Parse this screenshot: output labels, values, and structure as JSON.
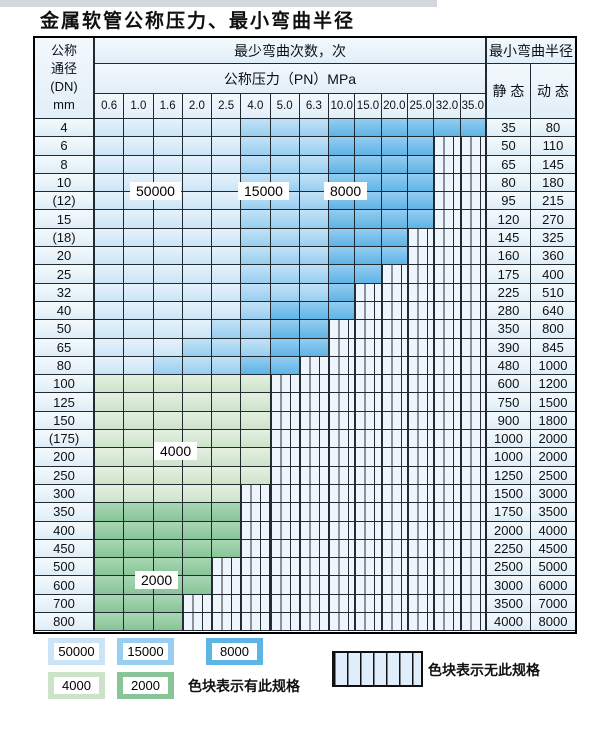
{
  "title": "金属软管公称压力、最小弯曲半径",
  "header": {
    "dn_line1": "公称",
    "dn_line2": "通径",
    "dn_line3": "(DN)",
    "dn_line4": "mm",
    "bend_cycles": "最少弯曲次数，次",
    "pressure": "公称压力（PN）MPa",
    "min_radius": "最小弯曲半径",
    "static": "静 态",
    "dynamic": "动 态",
    "pressure_cols": [
      "0.6",
      "1.0",
      "1.6",
      "2.0",
      "2.5",
      "4.0",
      "5.0",
      "6.3",
      "10.0",
      "15.0",
      "20.0",
      "25.0",
      "32.0",
      "35.0"
    ]
  },
  "region_labels": [
    "50000",
    "15000",
    "8000",
    "4000",
    "2000"
  ],
  "colors": {
    "cycles_50000_light_blue": "#cbe5f6",
    "cycles_15000_mid_blue": "#98cef0",
    "cycles_8000_dark_blue": "#5fb4e6",
    "cycles_4000_light_green": "#cde3c9",
    "cycles_2000_mid_green": "#88c497",
    "stripe_background": "#eef5fc",
    "header_background": "#e1eef8"
  },
  "rows": [
    {
      "dn": "4",
      "cells": "LLLLLMMMDDDDDD",
      "static": "35",
      "dynamic": "80"
    },
    {
      "dn": "6",
      "cells": "LLLLLMMMDDDDSS",
      "static": "50",
      "dynamic": "110"
    },
    {
      "dn": "8",
      "cells": "LLLLLMMMDDDDSS",
      "static": "65",
      "dynamic": "145"
    },
    {
      "dn": "10",
      "cells": "LLLLLMMMDDDDSS",
      "static": "80",
      "dynamic": "180"
    },
    {
      "dn": "(12)",
      "cells": "LLLLLMMMDDDDSS",
      "static": "95",
      "dynamic": "215"
    },
    {
      "dn": "15",
      "cells": "LLLLLMMMDDDDSS",
      "static": "120",
      "dynamic": "270"
    },
    {
      "dn": "(18)",
      "cells": "LLLLLMMMDDDSSS",
      "static": "145",
      "dynamic": "325"
    },
    {
      "dn": "20",
      "cells": "LLLLLMMMDDDSSS",
      "static": "160",
      "dynamic": "360"
    },
    {
      "dn": "25",
      "cells": "LLLLLMMMDDSSSS",
      "static": "175",
      "dynamic": "400"
    },
    {
      "dn": "32",
      "cells": "LLLLLMMMDSSSSS",
      "static": "225",
      "dynamic": "510"
    },
    {
      "dn": "40",
      "cells": "LLLLLMDDDSSSSS",
      "static": "280",
      "dynamic": "640"
    },
    {
      "dn": "50",
      "cells": "LLLLMMDDSSSSSS",
      "static": "350",
      "dynamic": "800"
    },
    {
      "dn": "65",
      "cells": "LLLMMMDDSSSSSS",
      "static": "390",
      "dynamic": "845"
    },
    {
      "dn": "80",
      "cells": "LLMMMDDSSSSSSS",
      "static": "480",
      "dynamic": "1000"
    },
    {
      "dn": "100",
      "cells": "FFFFFFSSSSSSSS",
      "static": "600",
      "dynamic": "1200"
    },
    {
      "dn": "125",
      "cells": "FFFFFFSSSSSSSS",
      "static": "750",
      "dynamic": "1500"
    },
    {
      "dn": "150",
      "cells": "FFFFFFSSSSSSSS",
      "static": "900",
      "dynamic": "1800"
    },
    {
      "dn": "(175)",
      "cells": "FFFFFFSSSSSSSS",
      "static": "1000",
      "dynamic": "2000"
    },
    {
      "dn": "200",
      "cells": "FFFFFFSSSSSSSS",
      "static": "1000",
      "dynamic": "2000"
    },
    {
      "dn": "250",
      "cells": "FFFFFFSSSSSSSS",
      "static": "1250",
      "dynamic": "2500"
    },
    {
      "dn": "300",
      "cells": "FFFFFSSSSSSSSS",
      "static": "1500",
      "dynamic": "3000"
    },
    {
      "dn": "350",
      "cells": "GGGGGSSSSSSSSS",
      "static": "1750",
      "dynamic": "3500"
    },
    {
      "dn": "400",
      "cells": "GGGGGSSSSSSSSS",
      "static": "2000",
      "dynamic": "4000"
    },
    {
      "dn": "450",
      "cells": "GGGGGSSSSSSSSS",
      "static": "2250",
      "dynamic": "4500"
    },
    {
      "dn": "500",
      "cells": "GGGGSSSSSSSSSS",
      "static": "2500",
      "dynamic": "5000"
    },
    {
      "dn": "600",
      "cells": "GGGGSSSSSSSSSS",
      "static": "3000",
      "dynamic": "6000"
    },
    {
      "dn": "700",
      "cells": "GGGSSSSSSSSSSS",
      "static": "3500",
      "dynamic": "7000"
    },
    {
      "dn": "800",
      "cells": "GGGSSSSSSSSSSS",
      "static": "4000",
      "dynamic": "8000"
    }
  ],
  "legend": {
    "chips": [
      {
        "label": "50000",
        "color": "#cbe5f6"
      },
      {
        "label": "15000",
        "color": "#98cef0"
      },
      {
        "label": "8000",
        "color": "#5fb4e6"
      },
      {
        "label": "4000",
        "color": "#cde3c9"
      },
      {
        "label": "2000",
        "color": "#88c497"
      }
    ],
    "have_spec_label": "色块表示有此规格",
    "no_spec_label": "色块表示无此规格"
  }
}
